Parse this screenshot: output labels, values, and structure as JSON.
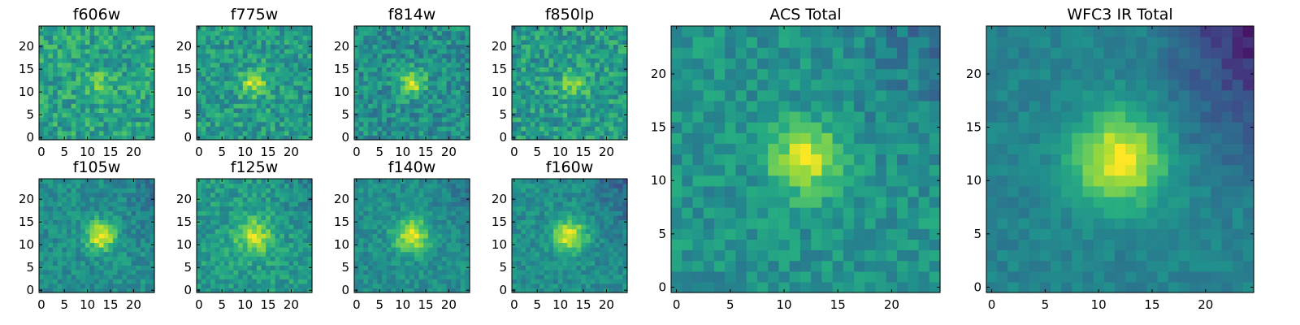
{
  "chart_data": {
    "type": "heatmap",
    "colormap": "viridis",
    "grid": false,
    "panels": [
      {
        "id": "f606w",
        "title": "f606w",
        "shape": [
          25,
          25
        ],
        "xlim": [
          0,
          24
        ],
        "ylim": [
          0,
          24
        ],
        "xticks": [
          0,
          5,
          10,
          15,
          20
        ],
        "yticks": [
          0,
          5,
          10,
          15,
          20
        ],
        "peak": {
          "x": 13,
          "y": 12,
          "sigma": 2.0,
          "amp": 0.18
        },
        "base": 0.58,
        "noise": 0.32,
        "seed": 11,
        "gradient": 0.0
      },
      {
        "id": "f775w",
        "title": "f775w",
        "shape": [
          25,
          25
        ],
        "xlim": [
          0,
          24
        ],
        "ylim": [
          0,
          24
        ],
        "xticks": [
          0,
          5,
          10,
          15,
          20
        ],
        "yticks": [
          0,
          5,
          10,
          15,
          20
        ],
        "peak": {
          "x": 12,
          "y": 12,
          "sigma": 2.0,
          "amp": 0.35
        },
        "base": 0.55,
        "noise": 0.3,
        "seed": 23,
        "gradient": 0.0
      },
      {
        "id": "f814w",
        "title": "f814w",
        "shape": [
          25,
          25
        ],
        "xlim": [
          0,
          24
        ],
        "ylim": [
          0,
          24
        ],
        "xticks": [
          0,
          5,
          10,
          15,
          20
        ],
        "yticks": [
          0,
          5,
          10,
          15,
          20
        ],
        "peak": {
          "x": 12,
          "y": 12,
          "sigma": 2.0,
          "amp": 0.4
        },
        "base": 0.5,
        "noise": 0.3,
        "seed": 37,
        "gradient": 0.0
      },
      {
        "id": "f850lp",
        "title": "f850lp",
        "shape": [
          25,
          25
        ],
        "xlim": [
          0,
          24
        ],
        "ylim": [
          0,
          24
        ],
        "xticks": [
          0,
          5,
          10,
          15,
          20
        ],
        "yticks": [
          0,
          5,
          10,
          15,
          20
        ],
        "peak": {
          "x": 13,
          "y": 12,
          "sigma": 2.2,
          "amp": 0.25
        },
        "base": 0.55,
        "noise": 0.32,
        "seed": 41,
        "gradient": 0.0
      },
      {
        "id": "f105w",
        "title": "f105w",
        "shape": [
          25,
          25
        ],
        "xlim": [
          0,
          24
        ],
        "ylim": [
          0,
          24
        ],
        "xticks": [
          0,
          5,
          10,
          15,
          20
        ],
        "yticks": [
          0,
          5,
          10,
          15,
          20
        ],
        "peak": {
          "x": 13,
          "y": 12,
          "sigma": 2.2,
          "amp": 0.5
        },
        "base": 0.5,
        "noise": 0.22,
        "seed": 53,
        "gradient": 0.05
      },
      {
        "id": "f125w",
        "title": "f125w",
        "shape": [
          25,
          25
        ],
        "xlim": [
          0,
          24
        ],
        "ylim": [
          0,
          24
        ],
        "xticks": [
          0,
          5,
          10,
          15,
          20
        ],
        "yticks": [
          0,
          5,
          10,
          15,
          20
        ],
        "peak": {
          "x": 12,
          "y": 12,
          "sigma": 2.8,
          "amp": 0.35
        },
        "base": 0.55,
        "noise": 0.24,
        "seed": 67,
        "gradient": 0.05
      },
      {
        "id": "f140w",
        "title": "f140w",
        "shape": [
          25,
          25
        ],
        "xlim": [
          0,
          24
        ],
        "ylim": [
          0,
          24
        ],
        "xticks": [
          0,
          5,
          10,
          15,
          20
        ],
        "yticks": [
          0,
          5,
          10,
          15,
          20
        ],
        "peak": {
          "x": 12,
          "y": 12,
          "sigma": 2.6,
          "amp": 0.45
        },
        "base": 0.5,
        "noise": 0.2,
        "seed": 79,
        "gradient": 0.06
      },
      {
        "id": "f160w",
        "title": "f160w",
        "shape": [
          25,
          25
        ],
        "xlim": [
          0,
          24
        ],
        "ylim": [
          0,
          24
        ],
        "xticks": [
          0,
          5,
          10,
          15,
          20
        ],
        "yticks": [
          0,
          5,
          10,
          15,
          20
        ],
        "peak": {
          "x": 12,
          "y": 12,
          "sigma": 2.4,
          "amp": 0.5
        },
        "base": 0.5,
        "noise": 0.2,
        "seed": 83,
        "gradient": 0.1
      },
      {
        "id": "acs_total",
        "title": "ACS Total",
        "shape": [
          25,
          25
        ],
        "xlim": [
          0,
          24
        ],
        "ylim": [
          0,
          24
        ],
        "xticks": [
          0,
          5,
          10,
          15,
          20
        ],
        "yticks": [
          0,
          5,
          10,
          15,
          20
        ],
        "peak": {
          "x": 12,
          "y": 12,
          "sigma": 2.2,
          "amp": 0.45
        },
        "base": 0.52,
        "noise": 0.22,
        "seed": 97,
        "gradient": 0.08
      },
      {
        "id": "wfc3_ir_total",
        "title": "WFC3 IR Total",
        "shape": [
          25,
          25
        ],
        "xlim": [
          0,
          24
        ],
        "ylim": [
          0,
          24
        ],
        "xticks": [
          0,
          5,
          10,
          15,
          20
        ],
        "yticks": [
          0,
          5,
          10,
          15,
          20
        ],
        "peak": {
          "x": 12,
          "y": 12,
          "sigma": 3.0,
          "amp": 0.55
        },
        "base": 0.45,
        "noise": 0.12,
        "seed": 101,
        "gradient": 0.18
      }
    ]
  }
}
